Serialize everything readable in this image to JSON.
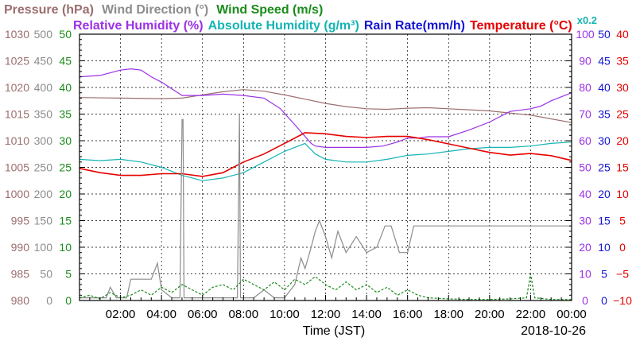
{
  "chart_data": {
    "type": "line",
    "legend_row1": [
      {
        "text": "Pressure (hPa)",
        "color": "#9c6e6e"
      },
      {
        "text": "Wind Direction (°)",
        "color": "#8c8c8c"
      },
      {
        "text": "Wind Speed (m/s)",
        "color": "#1a8c1a"
      }
    ],
    "legend_row2": [
      {
        "text": "Relative Humidity (%)",
        "color": "#9b32e6"
      },
      {
        "text": "Absolute Humidity (g/m³)",
        "color": "#14b4b4"
      },
      {
        "text": "Rain Rate(mm/h)",
        "color": "#1414d2"
      },
      {
        "text": "Temperature (°C)",
        "color": "#e60000"
      },
      {
        "text": "x0.2",
        "color": "#14b4b4"
      }
    ],
    "xlabel": "Time (JST)",
    "date_label": "2018-10-26",
    "x_range": [
      0,
      24
    ],
    "x_ticks": [
      {
        "h": 2,
        "label": "02:00"
      },
      {
        "h": 4,
        "label": "04:00"
      },
      {
        "h": 6,
        "label": "06:00"
      },
      {
        "h": 8,
        "label": "08:00"
      },
      {
        "h": 10,
        "label": "10:00"
      },
      {
        "h": 12,
        "label": "12:00"
      },
      {
        "h": 14,
        "label": "14:00"
      },
      {
        "h": 16,
        "label": "16:00"
      },
      {
        "h": 18,
        "label": "18:00"
      },
      {
        "h": 20,
        "label": "20:00"
      },
      {
        "h": 22,
        "label": "22:00"
      },
      {
        "h": 24,
        "label": "00:00"
      }
    ],
    "y_axes": [
      {
        "name": "pressure",
        "side": "left",
        "color": "#9c6e6e",
        "min": 980,
        "max": 1030,
        "ticks": [
          "980",
          "985",
          "990",
          "995",
          "1000",
          "1005",
          "1010",
          "1015",
          "1020",
          "1025",
          "1030"
        ]
      },
      {
        "name": "wind_direction",
        "side": "left",
        "color": "#8c8c8c",
        "min": 0,
        "max": 500,
        "ticks": [
          "0",
          "50",
          "100",
          "150",
          "200",
          "250",
          "300",
          "350",
          "400",
          "450",
          "500"
        ]
      },
      {
        "name": "wind_speed",
        "side": "left",
        "color": "#1a8c1a",
        "min": 0,
        "max": 50,
        "ticks": [
          "0",
          "5",
          "10",
          "15",
          "20",
          "25",
          "30",
          "35",
          "40",
          "45",
          "50"
        ]
      },
      {
        "name": "relative_humidity",
        "side": "right",
        "color": "#9b32e6",
        "min": 0,
        "max": 100,
        "ticks": [
          "0",
          "10",
          "20",
          "30",
          "40",
          "50",
          "60",
          "70",
          "80",
          "90",
          "100"
        ]
      },
      {
        "name": "rain_rate",
        "side": "right",
        "color": "#1414d2",
        "min": 0,
        "max": 50,
        "ticks": [
          "0",
          "5",
          "10",
          "15",
          "20",
          "25",
          "30",
          "35",
          "40",
          "45",
          "50"
        ]
      },
      {
        "name": "temperature",
        "side": "right",
        "color": "#e60000",
        "min": -10,
        "max": 40,
        "ticks": [
          "−10",
          "−5",
          "0",
          "5",
          "10",
          "15",
          "20",
          "25",
          "30",
          "35",
          "40"
        ]
      }
    ],
    "grid": true,
    "series": [
      {
        "name": "Pressure (hPa)",
        "axis": "pressure",
        "color": "#9c6e6e",
        "points": [
          [
            0,
            1018.1
          ],
          [
            2,
            1018.0
          ],
          [
            4,
            1017.9
          ],
          [
            5,
            1018.0
          ],
          [
            6,
            1018.6
          ],
          [
            7,
            1019.2
          ],
          [
            8,
            1019.6
          ],
          [
            9,
            1019.3
          ],
          [
            10,
            1018.6
          ],
          [
            11,
            1017.8
          ],
          [
            12,
            1017.0
          ],
          [
            13,
            1016.4
          ],
          [
            14,
            1016.0
          ],
          [
            15,
            1015.9
          ],
          [
            16,
            1016.1
          ],
          [
            17,
            1016.2
          ],
          [
            18,
            1016.0
          ],
          [
            19,
            1015.8
          ],
          [
            20,
            1015.6
          ],
          [
            21,
            1015.2
          ],
          [
            22,
            1014.8
          ],
          [
            23,
            1014.1
          ],
          [
            24,
            1013.4
          ]
        ]
      },
      {
        "name": "Relative Humidity (%)",
        "axis": "relative_humidity",
        "color": "#9b32e6",
        "points": [
          [
            0,
            84
          ],
          [
            1,
            84.5
          ],
          [
            1.5,
            85.5
          ],
          [
            2,
            86.5
          ],
          [
            2.5,
            87
          ],
          [
            3,
            86.5
          ],
          [
            3.5,
            84
          ],
          [
            4,
            82
          ],
          [
            5,
            77
          ],
          [
            6,
            77
          ],
          [
            7,
            77.5
          ],
          [
            8,
            77
          ],
          [
            9,
            76
          ],
          [
            9.8,
            72
          ],
          [
            10.5,
            66
          ],
          [
            11.3,
            59
          ],
          [
            11.5,
            58
          ],
          [
            12,
            57.5
          ],
          [
            13,
            57.5
          ],
          [
            14,
            57.5
          ],
          [
            14.8,
            58
          ],
          [
            15.5,
            59.5
          ],
          [
            16,
            61
          ],
          [
            16.5,
            61
          ],
          [
            17,
            61.5
          ],
          [
            18,
            61.5
          ],
          [
            19,
            64
          ],
          [
            20,
            67
          ],
          [
            21,
            71
          ],
          [
            22,
            72
          ],
          [
            22.5,
            73
          ],
          [
            23,
            75
          ],
          [
            24,
            78
          ]
        ]
      },
      {
        "name": "Absolute Humidity (g/m³)",
        "axis": "relative_humidity",
        "color": "#14b4b4",
        "points": [
          [
            0,
            53
          ],
          [
            1,
            52.5
          ],
          [
            2,
            53
          ],
          [
            3,
            52
          ],
          [
            4,
            50
          ],
          [
            5,
            47
          ],
          [
            6,
            45
          ],
          [
            7,
            46
          ],
          [
            8,
            48
          ],
          [
            9,
            52
          ],
          [
            10,
            56
          ],
          [
            11,
            59
          ],
          [
            11.5,
            55
          ],
          [
            12,
            53
          ],
          [
            13,
            52
          ],
          [
            14,
            52
          ],
          [
            15,
            53
          ],
          [
            16,
            54.5
          ],
          [
            17,
            55
          ],
          [
            18,
            56
          ],
          [
            19,
            57
          ],
          [
            20,
            57.5
          ],
          [
            21,
            57.5
          ],
          [
            22,
            58
          ],
          [
            23,
            59
          ],
          [
            24,
            59.5
          ]
        ]
      },
      {
        "name": "Temperature (°C)",
        "axis": "temperature",
        "color": "#e60000",
        "points": [
          [
            0,
            14.8
          ],
          [
            1,
            14
          ],
          [
            2,
            13.5
          ],
          [
            3,
            13.5
          ],
          [
            4,
            13.8
          ],
          [
            5,
            13.8
          ],
          [
            6,
            13.3
          ],
          [
            7,
            14
          ],
          [
            8,
            16
          ],
          [
            9,
            17.5
          ],
          [
            10,
            19.5
          ],
          [
            11,
            21.5
          ],
          [
            12,
            21.3
          ],
          [
            13,
            20.8
          ],
          [
            14,
            20.6
          ],
          [
            15,
            20.8
          ],
          [
            16,
            20.8
          ],
          [
            17,
            20.2
          ],
          [
            18,
            19.4
          ],
          [
            19,
            18.6
          ],
          [
            20,
            17.8
          ],
          [
            21,
            17.3
          ],
          [
            22,
            17.6
          ],
          [
            23,
            17.2
          ],
          [
            24,
            16.3
          ]
        ]
      },
      {
        "name": "Wind Direction (°)",
        "axis": "wind_direction",
        "color": "#8c8c8c",
        "points": [
          [
            0,
            5
          ],
          [
            1.3,
            5
          ],
          [
            1.5,
            25
          ],
          [
            1.8,
            5
          ],
          [
            2.3,
            5
          ],
          [
            2.5,
            40
          ],
          [
            3.5,
            40
          ],
          [
            3.8,
            70
          ],
          [
            4,
            20
          ],
          [
            4.5,
            5
          ],
          [
            4.9,
            5
          ],
          [
            5,
            340
          ],
          [
            5.05,
            340
          ],
          [
            5.1,
            5
          ],
          [
            6,
            5
          ],
          [
            7.7,
            5
          ],
          [
            7.8,
            350
          ],
          [
            7.85,
            5
          ],
          [
            8.5,
            5
          ],
          [
            9,
            20
          ],
          [
            9.5,
            5
          ],
          [
            10,
            5
          ],
          [
            10.5,
            30
          ],
          [
            10.8,
            80
          ],
          [
            11,
            60
          ],
          [
            11.3,
            100
          ],
          [
            11.5,
            130
          ],
          [
            11.7,
            150
          ],
          [
            12,
            120
          ],
          [
            12.3,
            80
          ],
          [
            12.6,
            130
          ],
          [
            13,
            90
          ],
          [
            13.5,
            120
          ],
          [
            14,
            90
          ],
          [
            14.5,
            100
          ],
          [
            14.9,
            140
          ],
          [
            15.2,
            140
          ],
          [
            15.6,
            90
          ],
          [
            16,
            90
          ],
          [
            16.3,
            140
          ],
          [
            16.6,
            140
          ],
          [
            17,
            140
          ],
          [
            18,
            140
          ],
          [
            19,
            140
          ],
          [
            20,
            140
          ],
          [
            21,
            140
          ],
          [
            22,
            140
          ],
          [
            23,
            140
          ],
          [
            24,
            140
          ]
        ]
      },
      {
        "name": "Wind Speed (m/s)",
        "axis": "wind_speed",
        "color": "#1a8c1a",
        "style": "dashed",
        "points": [
          [
            0,
            0.5
          ],
          [
            0.5,
            1
          ],
          [
            1,
            0.3
          ],
          [
            1.5,
            1.5
          ],
          [
            2,
            0.5
          ],
          [
            2.5,
            1
          ],
          [
            3,
            2
          ],
          [
            3.5,
            1
          ],
          [
            4,
            2.5
          ],
          [
            4.5,
            1.5
          ],
          [
            5,
            3
          ],
          [
            5.5,
            2
          ],
          [
            6,
            1
          ],
          [
            6.5,
            2.5
          ],
          [
            7,
            3
          ],
          [
            7.5,
            2
          ],
          [
            8,
            4
          ],
          [
            8.5,
            3
          ],
          [
            9,
            2
          ],
          [
            9.5,
            3.5
          ],
          [
            10,
            2
          ],
          [
            10.5,
            4
          ],
          [
            11,
            3
          ],
          [
            11.5,
            4.5
          ],
          [
            12,
            3
          ],
          [
            12.5,
            2
          ],
          [
            13,
            3.5
          ],
          [
            13.5,
            2
          ],
          [
            14,
            3
          ],
          [
            14.5,
            1.5
          ],
          [
            15,
            2.5
          ],
          [
            15.5,
            1
          ],
          [
            16,
            2
          ],
          [
            16.5,
            1
          ],
          [
            17,
            0.5
          ],
          [
            18,
            0.3
          ],
          [
            19,
            0.2
          ],
          [
            20,
            0.2
          ],
          [
            21,
            0.3
          ],
          [
            21.8,
            0.5
          ],
          [
            22,
            5
          ],
          [
            22.2,
            0.5
          ],
          [
            23,
            0.2
          ],
          [
            24,
            0.2
          ]
        ]
      }
    ]
  }
}
